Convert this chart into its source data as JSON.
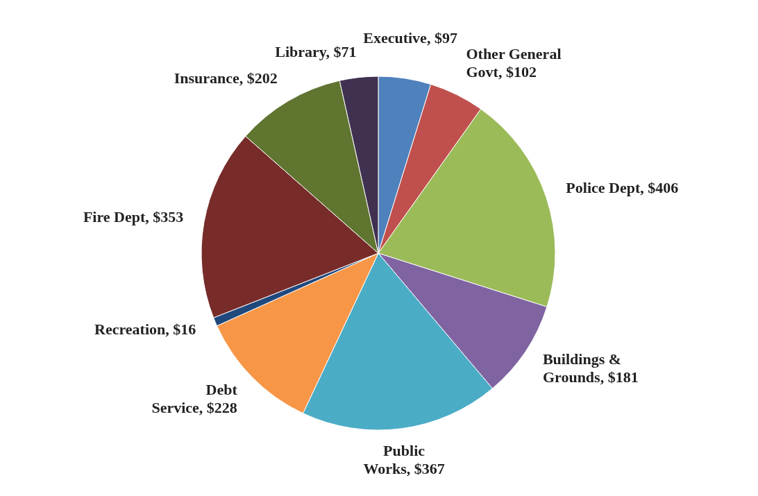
{
  "chart_data": {
    "type": "pie",
    "categories": [
      "Executive",
      "Other General Govt",
      "Police Dept",
      "Buildings & Grounds",
      "Public Works",
      "Debt Service",
      "Recreation",
      "Fire Dept",
      "Insurance",
      "Library"
    ],
    "values": [
      97,
      102,
      406,
      181,
      367,
      228,
      16,
      353,
      202,
      71
    ],
    "value_labels": [
      "$97",
      "$102",
      "$406",
      "$181",
      "$367",
      "$228",
      "$16",
      "$353",
      "$202",
      "$71"
    ],
    "colors": [
      "#4f81bd",
      "#c0504d",
      "#9bbb59",
      "#8064a2",
      "#4bacc6",
      "#f79646",
      "#1f497d",
      "#772c2a",
      "#5f7530",
      "#403151"
    ]
  }
}
